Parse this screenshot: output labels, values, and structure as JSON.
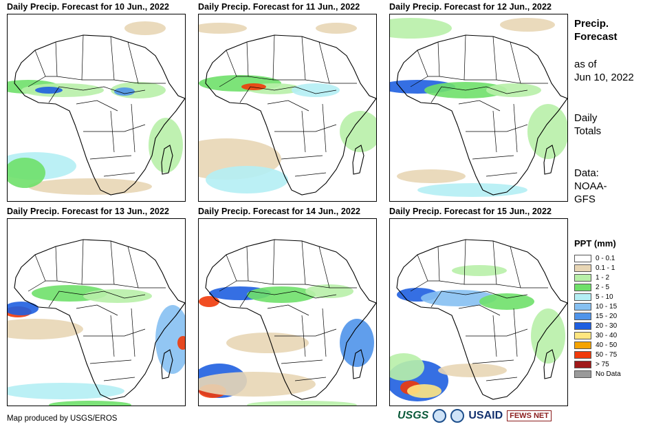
{
  "panels": [
    {
      "title": "Daily Precip. Forecast for 10 Jun., 2022"
    },
    {
      "title": "Daily Precip. Forecast for 11 Jun., 2022"
    },
    {
      "title": "Daily Precip. Forecast for 12 Jun., 2022"
    },
    {
      "title": "Daily Precip. Forecast for 13 Jun., 2022"
    },
    {
      "title": "Daily Precip. Forecast for 14 Jun., 2022"
    },
    {
      "title": "Daily Precip. Forecast for 15 Jun., 2022"
    }
  ],
  "side": {
    "title_line1": "Precip.",
    "title_line2": "Forecast",
    "asof_line1": "as of",
    "asof_line2": "Jun 10, 2022",
    "totals_line1": "Daily",
    "totals_line2": "Totals",
    "data_line1": "Data:",
    "data_line2": "NOAA-",
    "data_line3": "GFS"
  },
  "legend": {
    "title": "PPT (mm)",
    "items": [
      {
        "label": "0 - 0.1",
        "color": "#ffffff"
      },
      {
        "label": "0.1 - 1",
        "color": "#e8d6b5"
      },
      {
        "label": "1 - 2",
        "color": "#b8f0a8"
      },
      {
        "label": "2 - 5",
        "color": "#6fe06a"
      },
      {
        "label": "5 - 10",
        "color": "#b4eef4"
      },
      {
        "label": "10 - 15",
        "color": "#86c0f2"
      },
      {
        "label": "15 - 20",
        "color": "#4f94ea"
      },
      {
        "label": "20 - 30",
        "color": "#1f5fe0"
      },
      {
        "label": "30 - 40",
        "color": "#ffe680"
      },
      {
        "label": "40 - 50",
        "color": "#f5a300"
      },
      {
        "label": "50 - 75",
        "color": "#f03a0a"
      },
      {
        "label": "> 75",
        "color": "#a01818"
      },
      {
        "label": "No Data",
        "color": "#9a9a9a"
      }
    ]
  },
  "footer": {
    "credit": "Map produced by USGS/EROS",
    "logo_usgs": "USGS",
    "logo_usaid": "USAID",
    "logo_fews": "FEWS NET"
  }
}
